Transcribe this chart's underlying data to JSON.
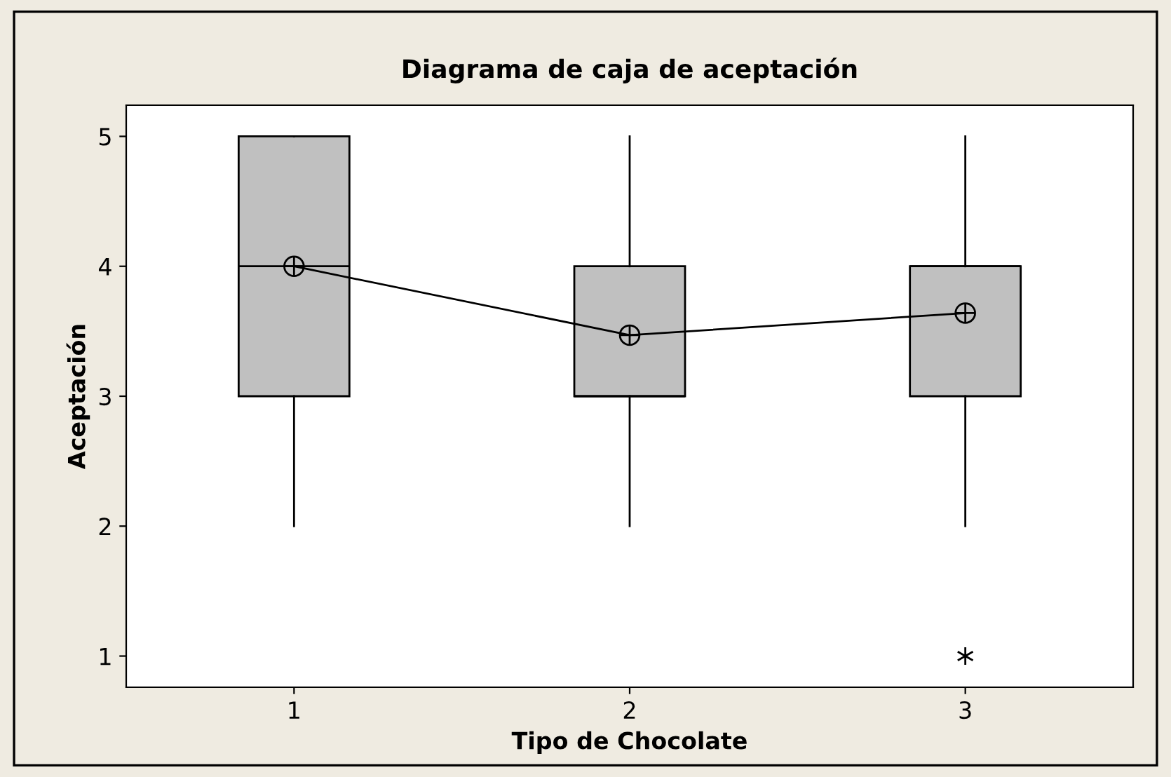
{
  "chart_data": {
    "type": "box",
    "title": "Diagrama de caja de aceptación",
    "xlabel": "Tipo de Chocolate",
    "ylabel": "Aceptación",
    "categories": [
      "1",
      "2",
      "3"
    ],
    "boxes": [
      {
        "low": 2,
        "q1": 3,
        "median": 4,
        "q3": 5,
        "high": 5
      },
      {
        "low": 2,
        "q1": 3,
        "median": 3,
        "q3": 4,
        "high": 5
      },
      {
        "low": 2,
        "q1": 3,
        "median": 4,
        "q3": 4,
        "high": 5,
        "outliers": [
          1
        ]
      }
    ],
    "color": "#c0c0c0",
    "series": [
      {
        "type": "line",
        "color": "#000000",
        "values": [
          4.0,
          3.47,
          3.64
        ],
        "marker": "circle"
      }
    ],
    "ylim": [
      0.76,
      5.24
    ],
    "yticks": [
      1,
      2,
      3,
      4,
      5
    ],
    "grid": false,
    "legend": false
  }
}
